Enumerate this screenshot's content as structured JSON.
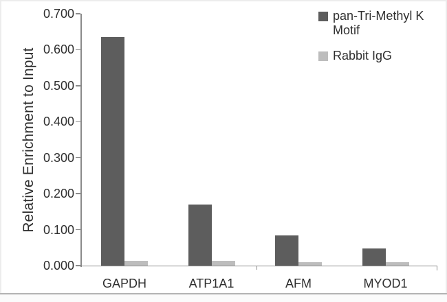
{
  "chart_data": {
    "type": "bar",
    "title": "",
    "xlabel": "",
    "ylabel": "Relative Enrichment to Input",
    "categories": [
      "GAPDH",
      "ATP1A1",
      "AFM",
      "MYOD1"
    ],
    "series": [
      {
        "name": "pan-Tri-Methyl K Motif",
        "color": "#5d5d5d",
        "values": [
          0.635,
          0.17,
          0.084,
          0.048
        ]
      },
      {
        "name": "Rabbit IgG",
        "color": "#bdbdbd",
        "values": [
          0.014,
          0.013,
          0.009,
          0.01
        ]
      }
    ],
    "ylim": [
      0.0,
      0.7
    ],
    "ytick_step": 0.1,
    "ytick_labels": [
      "0.000",
      "0.100",
      "0.200",
      "0.300",
      "0.400",
      "0.500",
      "0.600",
      "0.700"
    ],
    "legend_position": "top-right",
    "grid": false
  },
  "colors": {
    "axis": "#8a8a8a",
    "text": "#2f2f2f",
    "dark_series": "#5d5d5d",
    "light_series": "#bdbdbd",
    "frame_border": "#ececec",
    "bottom_rule": "#b3b3b3"
  }
}
